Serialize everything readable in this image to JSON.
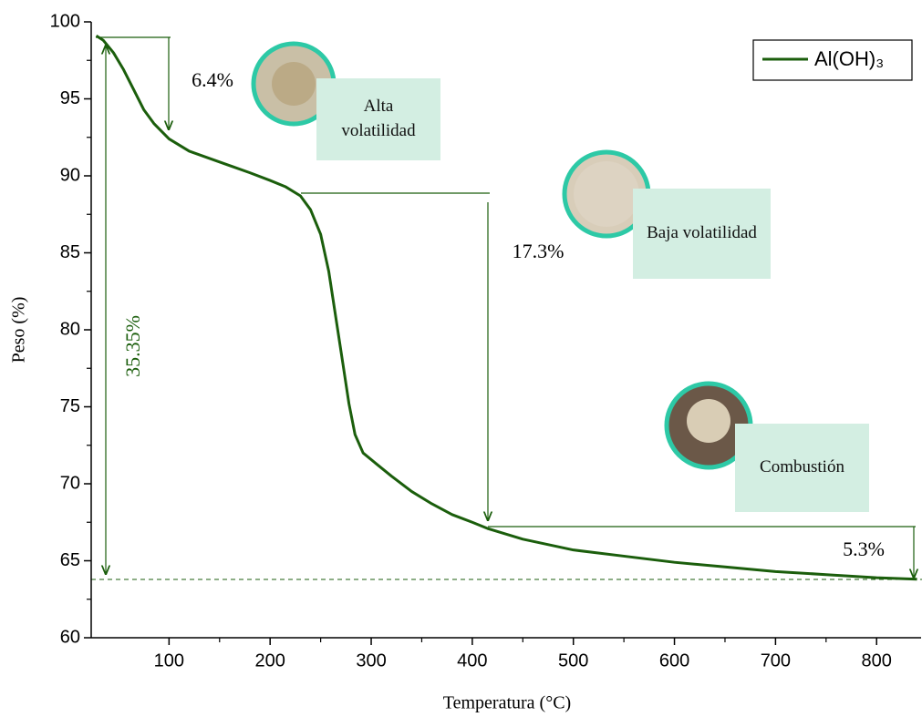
{
  "chart_data": {
    "type": "line",
    "xlabel": "Temperatura (°C)",
    "ylabel": "Peso (%)",
    "x": [
      28,
      35,
      45,
      55,
      65,
      75,
      85,
      100,
      120,
      150,
      180,
      200,
      215,
      230,
      240,
      250,
      258,
      265,
      272,
      278,
      284,
      292,
      305,
      320,
      340,
      360,
      380,
      400,
      415,
      450,
      500,
      550,
      600,
      650,
      700,
      750,
      800,
      840
    ],
    "series": [
      {
        "name": "Al(OH)₃",
        "color": "#1b5e0c",
        "values": [
          99.1,
          98.8,
          98.0,
          96.9,
          95.6,
          94.3,
          93.4,
          92.4,
          91.6,
          90.9,
          90.2,
          89.7,
          89.3,
          88.7,
          87.8,
          86.2,
          83.8,
          80.8,
          77.8,
          75.2,
          73.2,
          72.0,
          71.3,
          70.5,
          69.5,
          68.7,
          68.0,
          67.5,
          67.1,
          66.4,
          65.7,
          65.3,
          64.9,
          64.6,
          64.3,
          64.1,
          63.9,
          63.8
        ]
      }
    ],
    "xlim": [
      23,
      844
    ],
    "ylim": [
      60,
      100
    ],
    "xticks": [
      100,
      200,
      300,
      400,
      500,
      600,
      700,
      800
    ],
    "yticks": [
      60,
      65,
      70,
      75,
      80,
      85,
      90,
      95,
      100
    ],
    "grid": false,
    "legend": "upper right",
    "annotations": [
      "6.4%",
      "17.3%",
      "5.3%",
      "35.35%"
    ],
    "stage_labels": [
      "Alta volatilidad",
      "Baja volatilidad",
      "Combustión"
    ]
  }
}
